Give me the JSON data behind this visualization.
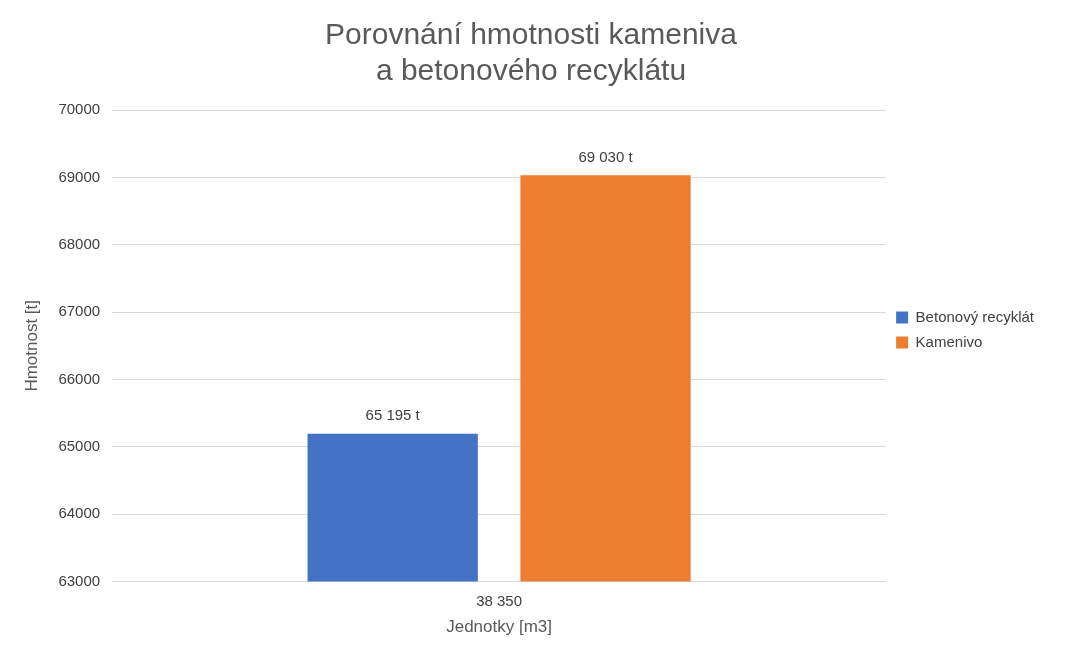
{
  "chart_data": {
    "type": "bar",
    "title": "Porovnání hmotnosti kameniva\na betonového recyklátu",
    "xlabel": "Jednotky [m3]",
    "ylabel": "Hmotnost [t]",
    "categories": [
      "38 350"
    ],
    "series": [
      {
        "name": "Betonový recyklát",
        "color": "#4472c4",
        "values": [
          65195
        ],
        "value_labels": [
          "65 195 t"
        ]
      },
      {
        "name": "Kamenivo",
        "color": "#ed7d31",
        "values": [
          69030
        ],
        "value_labels": [
          "69 030 t"
        ]
      }
    ],
    "ylim": [
      63000,
      70000
    ],
    "yticks": [
      63000,
      64000,
      65000,
      66000,
      67000,
      68000,
      69000,
      70000
    ],
    "grid": "y",
    "legend": "right"
  }
}
